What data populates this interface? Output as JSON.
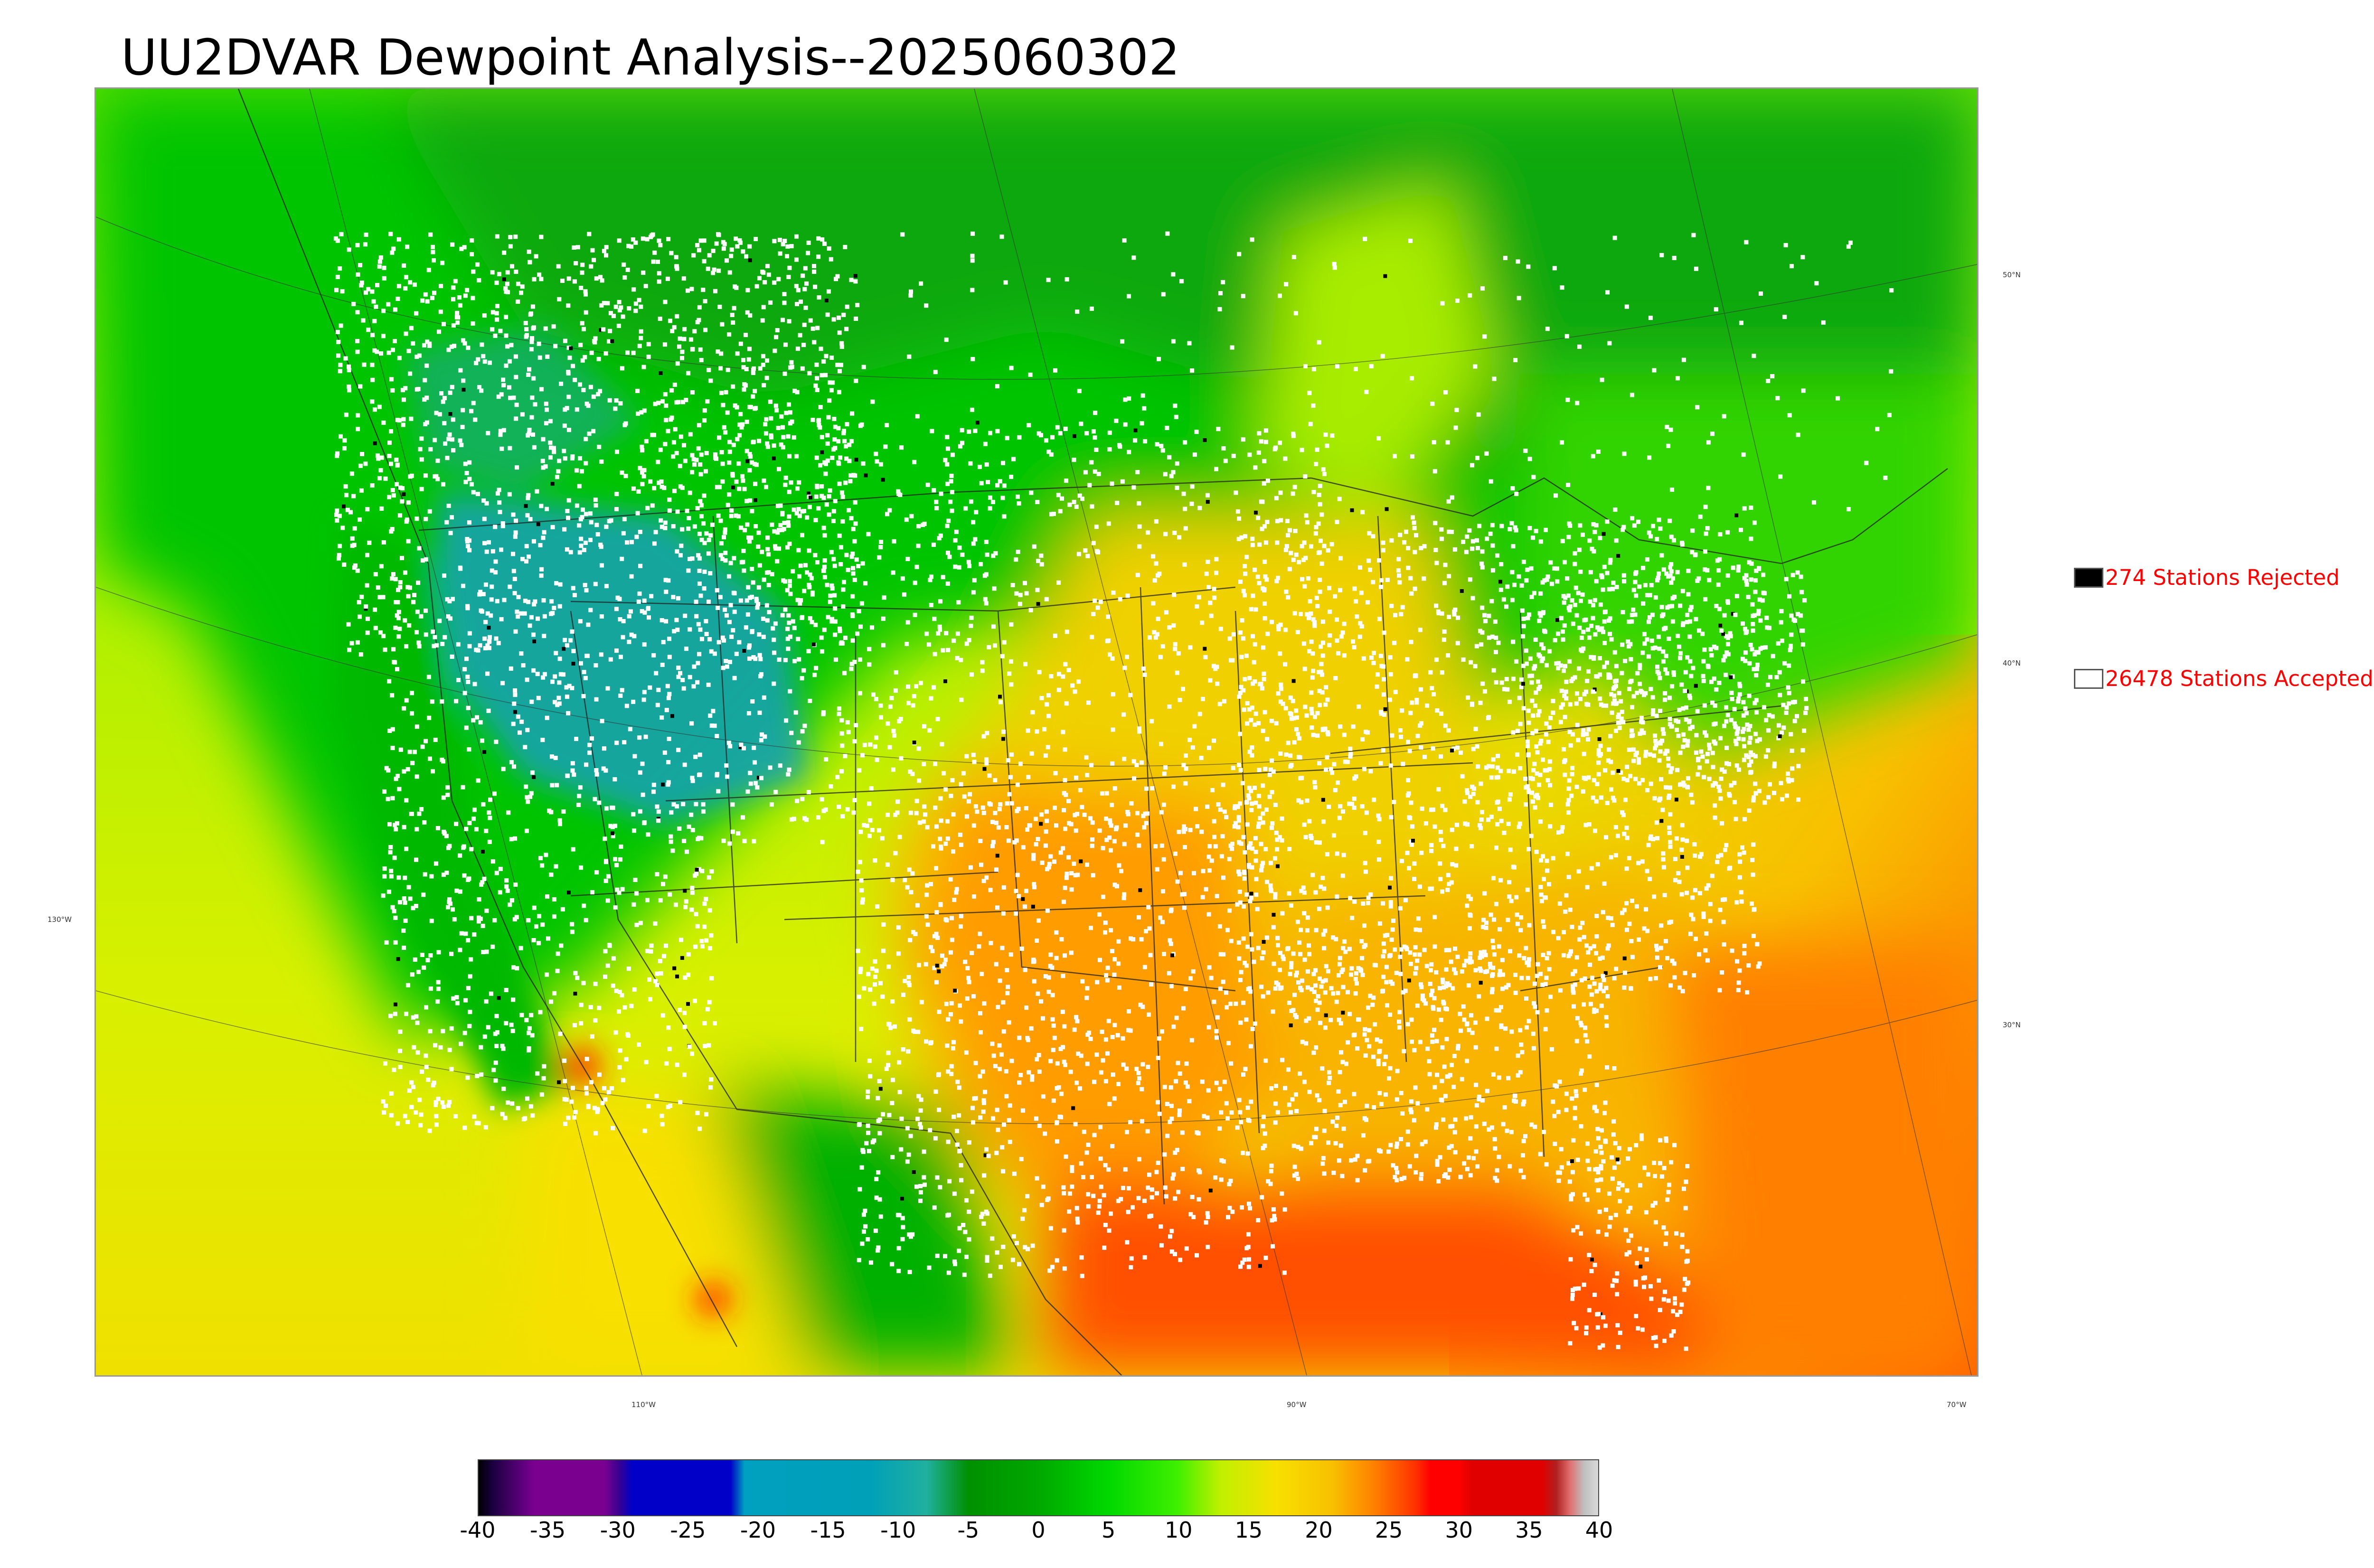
{
  "title": "UU2DVAR Dewpoint Analysis--2025060302",
  "map": {
    "graticule_lat_labels": [
      "50°N",
      "40°N",
      "30°N"
    ],
    "graticule_lon_labels": [
      "130°W",
      "110°W",
      "90°W",
      "70°W"
    ],
    "colors": {
      "land_dry": "#00c000",
      "plains_dry": "#1adc00",
      "ocean_west": "#c8f000",
      "gulf": "#ff6000",
      "midwest": "#f8c400",
      "great_basin": "#1aa0b8",
      "station_accepted": "#ffffff",
      "station_rejected": "#000000"
    }
  },
  "legend": {
    "rejected_label": "274 Stations Rejected",
    "accepted_label": "26478 Stations Accepted",
    "rejected_count": 274,
    "accepted_count": 26478
  },
  "colorbar": {
    "min": -40,
    "max": 40,
    "tick_labels": [
      "-40",
      "-35",
      "-30",
      "-25",
      "-20",
      "-15",
      "-10",
      "-5",
      "0",
      "5",
      "10",
      "15",
      "20",
      "25",
      "30",
      "35",
      "40"
    ],
    "stops": [
      {
        "value": -40,
        "color": "#000000"
      },
      {
        "value": -39,
        "color": "#1a0040"
      },
      {
        "value": -37,
        "color": "#5a007a"
      },
      {
        "value": -36,
        "color": "#7a0090"
      },
      {
        "value": -31,
        "color": "#7a0090"
      },
      {
        "value": -30,
        "color": "#3a0090"
      },
      {
        "value": -29,
        "color": "#0000c8"
      },
      {
        "value": -22,
        "color": "#0000c8"
      },
      {
        "value": -21,
        "color": "#00a0c0"
      },
      {
        "value": -12,
        "color": "#00a0b8"
      },
      {
        "value": -8,
        "color": "#20b0a0"
      },
      {
        "value": -5,
        "color": "#009000"
      },
      {
        "value": 0,
        "color": "#00a800"
      },
      {
        "value": 5,
        "color": "#00d800"
      },
      {
        "value": 10,
        "color": "#40f000"
      },
      {
        "value": 13,
        "color": "#c0f000"
      },
      {
        "value": 17,
        "color": "#f8e000"
      },
      {
        "value": 21,
        "color": "#f8c000"
      },
      {
        "value": 24,
        "color": "#ff8000"
      },
      {
        "value": 27,
        "color": "#ff3000"
      },
      {
        "value": 28,
        "color": "#ff0000"
      },
      {
        "value": 30,
        "color": "#ff0000"
      },
      {
        "value": 31,
        "color": "#e00000"
      },
      {
        "value": 36,
        "color": "#e00000"
      },
      {
        "value": 37,
        "color": "#b02020"
      },
      {
        "value": 38,
        "color": "#e07070"
      },
      {
        "value": 39,
        "color": "#c0c0c0"
      },
      {
        "value": 40,
        "color": "#d8d8d8"
      }
    ]
  }
}
